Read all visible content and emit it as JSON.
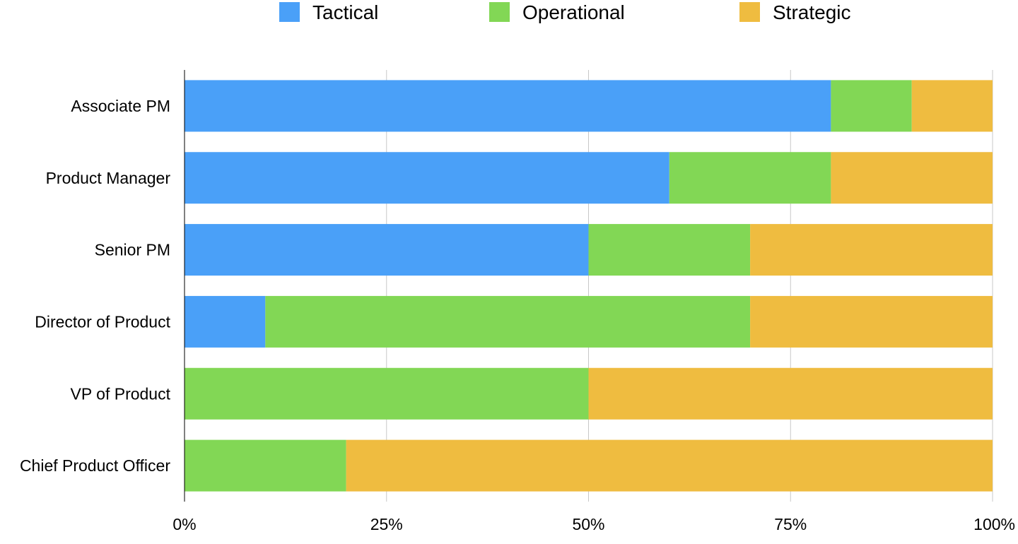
{
  "chart_data": {
    "type": "bar",
    "orientation": "horizontal",
    "stacked": true,
    "categories": [
      "Associate PM",
      "Product Manager",
      "Senior PM",
      "Director of Product",
      "VP of Product",
      "Chief Product Officer"
    ],
    "series": [
      {
        "name": "Tactical",
        "values": [
          80,
          60,
          50,
          10,
          0,
          0
        ],
        "color": "#4aa0f8"
      },
      {
        "name": "Operational",
        "values": [
          10,
          20,
          20,
          60,
          50,
          20
        ],
        "color": "#82d755"
      },
      {
        "name": "Strategic",
        "values": [
          10,
          20,
          30,
          30,
          50,
          80
        ],
        "color": "#efbc40"
      }
    ],
    "xlim": [
      0,
      100
    ],
    "x_ticks": [
      0,
      25,
      50,
      75,
      100
    ],
    "x_tick_labels": [
      "0%",
      "25%",
      "50%",
      "75%",
      "100%"
    ],
    "grid": true,
    "legend_position": "top-center"
  }
}
